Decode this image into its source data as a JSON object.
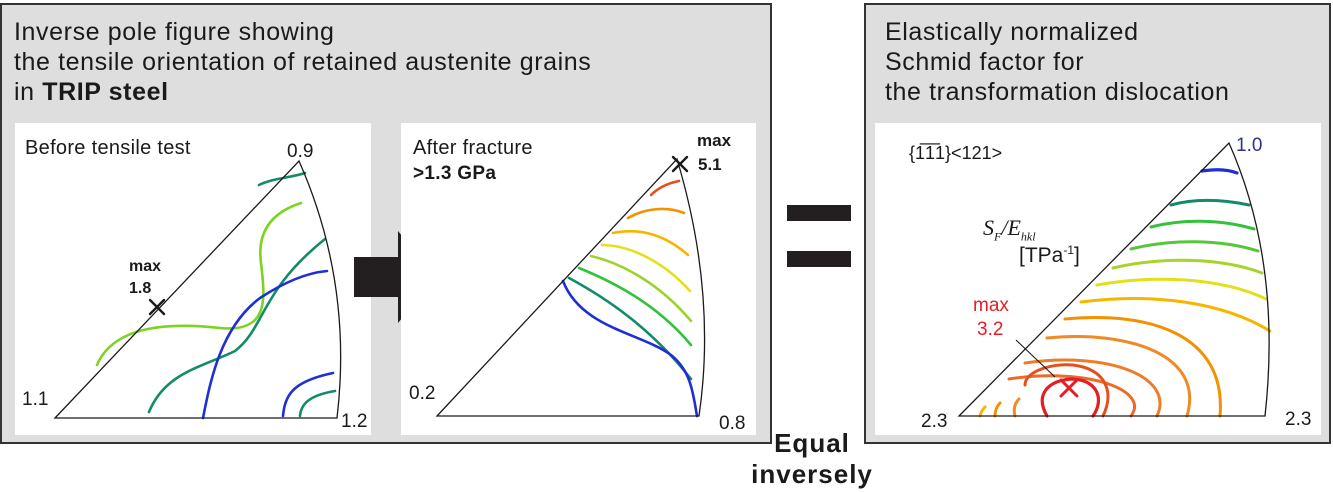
{
  "left_panel": {
    "title_lines": [
      "Inverse pole figure showing",
      "the tensile orientation of retained austenite grains"
    ],
    "title_last_prefix": "in ",
    "title_last_bold": "TRIP steel",
    "before": {
      "title": "Before tensile test",
      "max_label": "max",
      "max_value": "1.8",
      "corner_top": "0.9",
      "corner_left": "1.1",
      "corner_right": "1.2"
    },
    "after": {
      "title": "After fracture",
      "subtitle": ">1.3 GPa",
      "max_label": "max",
      "max_value": "5.1",
      "corner_left": "0.2",
      "corner_right": "0.8"
    }
  },
  "right_panel": {
    "title_lines": [
      "Elastically normalized",
      "Schmid factor for",
      "the transformation dislocation"
    ],
    "slip_system": "{1̅1̅1}<121>",
    "sf_symbol": "S",
    "sf_subscript": "F",
    "ehkl_symbol": "E",
    "ehkl_subscript": "hkl",
    "unit_prefix": "[TPa",
    "unit_exponent": "-1",
    "unit_suffix": "]",
    "max_label": "max",
    "max_value": "3.2",
    "corner_top": "1.0",
    "corner_left": "2.3",
    "corner_right": "2.3"
  },
  "relation": {
    "equals_symbol": "=",
    "line1": "Equal",
    "line2": "inversely"
  },
  "colors": {
    "panel_bg": "#dedede",
    "arrow": "#231f20",
    "max_red": "#e31e24",
    "blue_label": "#2e3192"
  }
}
